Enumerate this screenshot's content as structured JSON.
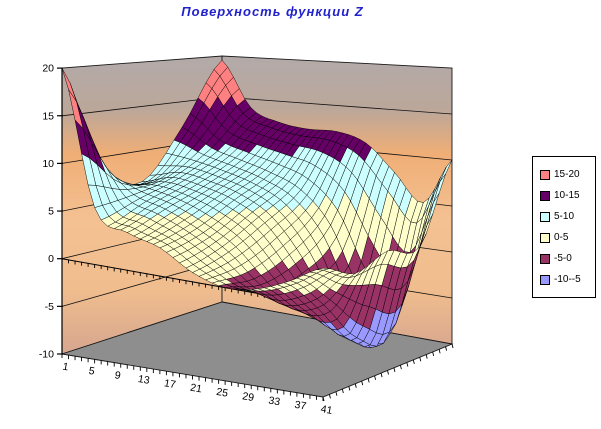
{
  "title": {
    "text": "Поверхность функции Z",
    "color": "#2222cc"
  },
  "legend": {
    "items": [
      {
        "label": "15-20",
        "color": "#FF8080"
      },
      {
        "label": "10-15",
        "color": "#660066"
      },
      {
        "label": "5-10",
        "color": "#CCFFFF"
      },
      {
        "label": "0-5",
        "color": "#FFFFCC"
      },
      {
        "label": "-5-0",
        "color": "#993366"
      },
      {
        "label": "-10--5",
        "color": "#9999FF"
      }
    ]
  },
  "chart_data": {
    "type": "surface",
    "title": "Поверхность функции Z",
    "x_axis": {
      "categories": 41,
      "tick_labels": [
        "1",
        "5",
        "9",
        "13",
        "17",
        "21",
        "25",
        "29",
        "33",
        "37",
        "41"
      ],
      "label_every": 4
    },
    "value_axis": {
      "min": -10,
      "max": 20,
      "step": 5,
      "tick_labels": [
        "20",
        "15",
        "10",
        "5",
        "0",
        "-5",
        "-10"
      ]
    },
    "depth_axis": {
      "rows": 21,
      "labels_visible": false
    },
    "bands": [
      {
        "label": "15-20",
        "min": 15,
        "color": "#FF8080"
      },
      {
        "label": "10-15",
        "min": 10,
        "color": "#660066"
      },
      {
        "label": "5-10",
        "min": 5,
        "color": "#CCFFFF"
      },
      {
        "label": "0-5",
        "min": 0,
        "color": "#FFFFCC"
      },
      {
        "label": "-5-0",
        "min": -5,
        "color": "#993366"
      },
      {
        "label": "-10--5",
        "min": -10,
        "color": "#9999FF"
      }
    ],
    "surface_grid": {
      "x_samples": [
        1,
        6,
        11,
        16,
        21,
        26,
        31,
        36,
        41
      ],
      "row_samples": [
        1,
        6,
        11,
        16,
        21
      ],
      "z": [
        [
          20,
          6,
          4,
          3,
          1,
          0,
          0.5,
          2,
          4
        ],
        [
          9,
          6.5,
          5.5,
          4,
          2,
          -1,
          -3,
          -2,
          2
        ],
        [
          6.5,
          7.5,
          7,
          6,
          4,
          0,
          -5,
          -7,
          3
        ],
        [
          12,
          10,
          9,
          8,
          6.5,
          3,
          -4,
          -8,
          2
        ],
        [
          19.5,
          14,
          12.5,
          12,
          12,
          11,
          8,
          5,
          10
        ]
      ]
    },
    "colors": {
      "wall_gray": "#b2aaaa",
      "wall_orange": "#f0ae76",
      "wall_light": "#f4c192",
      "wall_bottom": "#d5a58f",
      "floor": "#8e8e8e",
      "axis": "#000000"
    }
  }
}
